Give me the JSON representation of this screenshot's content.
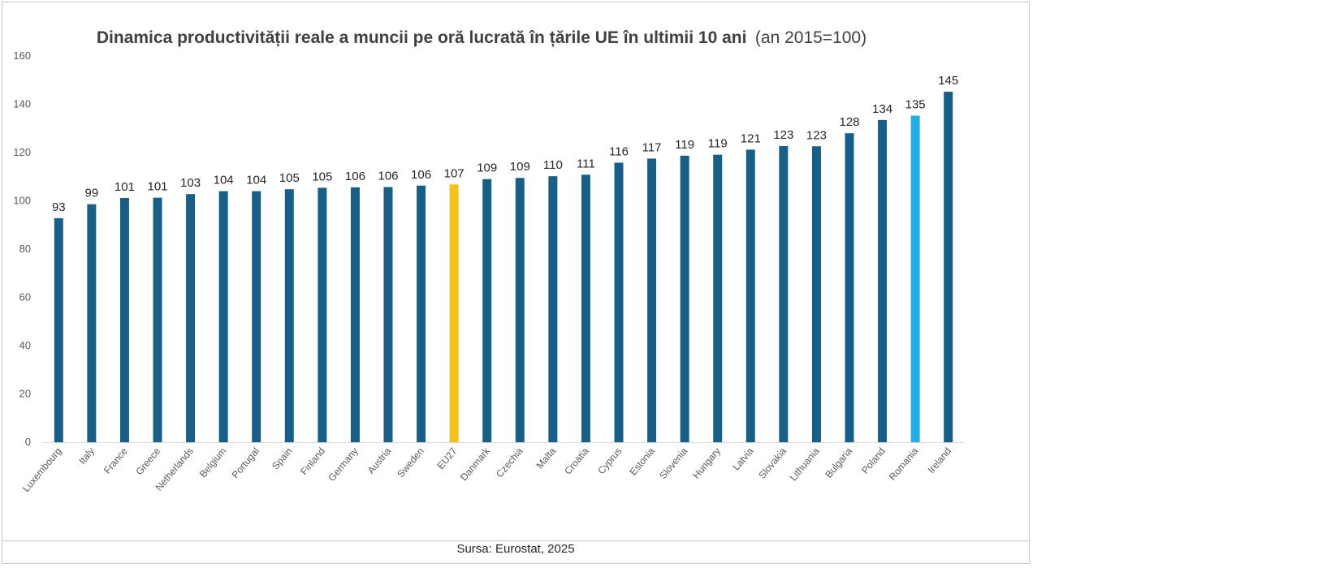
{
  "chart_data": {
    "type": "bar",
    "title": "Dinamica productivității reale a muncii pe oră lucrată în țările UE în ultimii 10 ani",
    "subtitle": "(an 2015=100)",
    "xlabel": "",
    "ylabel": "",
    "ylim": [
      0,
      160
    ],
    "yticks": [
      0,
      20,
      40,
      60,
      80,
      100,
      120,
      140,
      160
    ],
    "grid": false,
    "legend": "none",
    "categories": [
      "Luxembourg",
      "Italy",
      "France",
      "Greece",
      "Netherlands",
      "Belgium",
      "Portugal",
      "Spain",
      "Finland",
      "Germany",
      "Austria",
      "Sweden",
      "EU27",
      "Danmark",
      "Czechia",
      "Malta",
      "Croatia",
      "Cyprus",
      "Estonia",
      "Slovenia",
      "Hungary",
      "Latvia",
      "Slovakia",
      "Lithuania",
      "Bulgaria",
      "Poland",
      "Romania",
      "Ireland"
    ],
    "values": [
      92.8,
      98.6,
      101.2,
      101.3,
      102.8,
      104,
      104,
      104.8,
      105.4,
      105.6,
      105.7,
      106.3,
      106.8,
      109,
      109.5,
      110.2,
      110.8,
      115.8,
      117.5,
      118.7,
      119.1,
      121.2,
      122.7,
      122.6,
      128,
      133.5,
      135.3,
      145.2
    ],
    "data_labels": [
      "93",
      "99",
      "101",
      "101",
      "103",
      "104",
      "104",
      "105",
      "105",
      "106",
      "106",
      "106",
      "107",
      "109",
      "109",
      "110",
      "111",
      "116",
      "117",
      "119",
      "119",
      "121",
      "123",
      "123",
      "128",
      "134",
      "135",
      "145"
    ],
    "colors": {
      "default": "#175f86",
      "EU27": "#f5c018",
      "Romania": "#23aee8",
      "axis": "#d9d9d9"
    }
  },
  "source": "Sursa: Eurostat, 2025"
}
